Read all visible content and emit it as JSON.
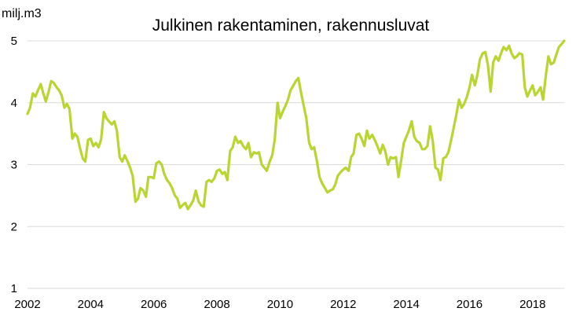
{
  "chart_data": {
    "type": "line",
    "title": "Julkinen rakentaminen, rakennusluvat",
    "ylabel": "milj.m3",
    "xlabel": "",
    "xlim": [
      2002,
      2019
    ],
    "ylim": [
      1,
      5
    ],
    "xticks": [
      2002,
      2004,
      2006,
      2008,
      2010,
      2012,
      2014,
      2016,
      2018
    ],
    "yticks": [
      1,
      2,
      3,
      4,
      5
    ],
    "grid": true,
    "legend": "none",
    "color": "#b9d532",
    "x": [
      2002.0,
      2002.08,
      2002.17,
      2002.25,
      2002.33,
      2002.42,
      2002.5,
      2002.58,
      2002.67,
      2002.75,
      2002.83,
      2002.92,
      2003.0,
      2003.08,
      2003.17,
      2003.25,
      2003.33,
      2003.42,
      2003.5,
      2003.58,
      2003.67,
      2003.75,
      2003.83,
      2003.92,
      2004.0,
      2004.08,
      2004.17,
      2004.25,
      2004.33,
      2004.42,
      2004.5,
      2004.58,
      2004.67,
      2004.75,
      2004.83,
      2004.92,
      2005.0,
      2005.08,
      2005.17,
      2005.25,
      2005.33,
      2005.42,
      2005.5,
      2005.58,
      2005.67,
      2005.75,
      2005.83,
      2005.92,
      2006.0,
      2006.08,
      2006.17,
      2006.25,
      2006.33,
      2006.42,
      2006.5,
      2006.58,
      2006.67,
      2006.75,
      2006.83,
      2006.92,
      2007.0,
      2007.08,
      2007.17,
      2007.25,
      2007.33,
      2007.42,
      2007.5,
      2007.58,
      2007.67,
      2007.75,
      2007.83,
      2007.92,
      2008.0,
      2008.08,
      2008.17,
      2008.25,
      2008.33,
      2008.42,
      2008.5,
      2008.58,
      2008.67,
      2008.75,
      2008.83,
      2008.92,
      2009.0,
      2009.08,
      2009.17,
      2009.25,
      2009.33,
      2009.42,
      2009.5,
      2009.58,
      2009.67,
      2009.75,
      2009.83,
      2009.92,
      2010.0,
      2010.08,
      2010.17,
      2010.25,
      2010.33,
      2010.42,
      2010.5,
      2010.58,
      2010.67,
      2010.75,
      2010.83,
      2010.92,
      2011.0,
      2011.08,
      2011.17,
      2011.25,
      2011.33,
      2011.42,
      2011.5,
      2011.58,
      2011.67,
      2011.75,
      2011.83,
      2011.92,
      2012.0,
      2012.08,
      2012.17,
      2012.25,
      2012.33,
      2012.42,
      2012.5,
      2012.58,
      2012.67,
      2012.75,
      2012.83,
      2012.92,
      2013.0,
      2013.08,
      2013.17,
      2013.25,
      2013.33,
      2013.42,
      2013.5,
      2013.58,
      2013.67,
      2013.75,
      2013.83,
      2013.92,
      2014.0,
      2014.08,
      2014.17,
      2014.25,
      2014.33,
      2014.42,
      2014.5,
      2014.58,
      2014.67,
      2014.75,
      2014.83,
      2014.92,
      2015.0,
      2015.08,
      2015.17,
      2015.25,
      2015.33,
      2015.42,
      2015.5,
      2015.58,
      2015.67,
      2015.75,
      2015.83,
      2015.92,
      2016.0,
      2016.08,
      2016.17,
      2016.25,
      2016.33,
      2016.42,
      2016.5,
      2016.58,
      2016.67,
      2016.75,
      2016.83,
      2016.92,
      2017.0,
      2017.08,
      2017.17,
      2017.25,
      2017.33,
      2017.42,
      2017.5,
      2017.58,
      2017.67,
      2017.75,
      2017.83,
      2017.92,
      2018.0,
      2018.08,
      2018.17,
      2018.25,
      2018.33,
      2018.42,
      2018.5,
      2018.58,
      2018.67,
      2018.75,
      2018.83,
      2018.92,
      2019.0
    ],
    "y": [
      3.82,
      3.92,
      4.15,
      4.1,
      4.2,
      4.3,
      4.15,
      4.02,
      4.18,
      4.35,
      4.32,
      4.25,
      4.2,
      4.12,
      3.92,
      3.98,
      3.9,
      3.42,
      3.5,
      3.45,
      3.25,
      3.1,
      3.05,
      3.4,
      3.42,
      3.3,
      3.35,
      3.28,
      3.4,
      3.85,
      3.75,
      3.7,
      3.65,
      3.7,
      3.55,
      3.12,
      3.05,
      3.15,
      3.05,
      2.95,
      2.82,
      2.4,
      2.45,
      2.62,
      2.58,
      2.48,
      2.8,
      2.8,
      2.78,
      3.02,
      3.05,
      3.0,
      2.85,
      2.75,
      2.7,
      2.62,
      2.5,
      2.45,
      2.3,
      2.35,
      2.38,
      2.28,
      2.35,
      2.42,
      2.58,
      2.4,
      2.34,
      2.32,
      2.72,
      2.75,
      2.72,
      2.78,
      2.9,
      2.92,
      2.85,
      2.88,
      2.75,
      3.22,
      3.28,
      3.45,
      3.35,
      3.38,
      3.3,
      3.25,
      3.35,
      3.12,
      3.2,
      3.18,
      3.2,
      3.0,
      2.95,
      2.9,
      3.05,
      3.15,
      3.4,
      4.0,
      3.75,
      3.85,
      3.95,
      4.05,
      4.2,
      4.28,
      4.35,
      4.4,
      4.15,
      3.95,
      3.75,
      3.35,
      3.25,
      3.28,
      3.05,
      2.8,
      2.7,
      2.62,
      2.55,
      2.58,
      2.6,
      2.68,
      2.82,
      2.88,
      2.92,
      2.95,
      2.9,
      3.12,
      3.18,
      3.48,
      3.5,
      3.42,
      3.3,
      3.55,
      3.42,
      3.48,
      3.4,
      3.3,
      3.18,
      3.32,
      3.22,
      3.0,
      3.12,
      3.1,
      3.12,
      2.8,
      3.05,
      3.35,
      3.45,
      3.55,
      3.7,
      3.45,
      3.38,
      3.35,
      3.25,
      3.25,
      3.3,
      3.62,
      3.4,
      2.95,
      2.92,
      2.75,
      3.1,
      3.12,
      3.2,
      3.4,
      3.6,
      3.8,
      4.05,
      3.92,
      3.98,
      4.1,
      4.25,
      4.45,
      4.28,
      4.45,
      4.7,
      4.8,
      4.82,
      4.62,
      4.18,
      4.65,
      4.75,
      4.68,
      4.8,
      4.9,
      4.85,
      4.92,
      4.8,
      4.72,
      4.75,
      4.8,
      4.78,
      4.25,
      4.1,
      4.2,
      4.28,
      4.12,
      4.18,
      4.25,
      4.05,
      4.45,
      4.75,
      4.62,
      4.65,
      4.78,
      4.9,
      4.95,
      5.0
    ]
  }
}
